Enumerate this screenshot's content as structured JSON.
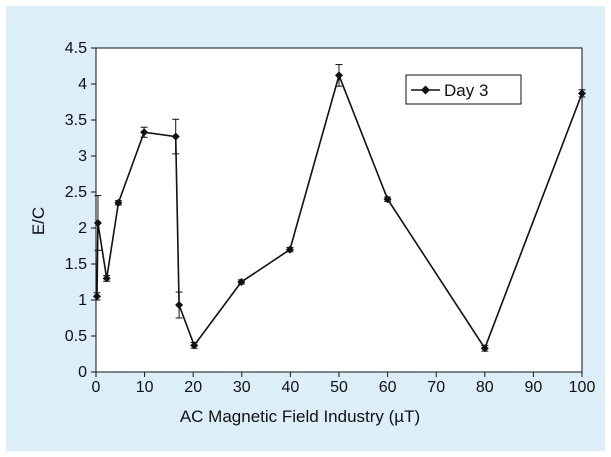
{
  "chart_data": {
    "type": "line",
    "xlabel": "AC Magnetic Field Industry (µT)",
    "ylabel": "E/C",
    "xlim": [
      0,
      100
    ],
    "ylim": [
      0,
      4.5
    ],
    "x_ticks": [
      "0",
      "10",
      "20",
      "30",
      "40",
      "50",
      "60",
      "70",
      "80",
      "90",
      "100"
    ],
    "y_ticks": [
      "0",
      "0.5",
      "1",
      "1.5",
      "2",
      "2.5",
      "3",
      "3.5",
      "4",
      "4.5"
    ],
    "legend_position": "top-right",
    "series": [
      {
        "name": "Day 3",
        "color": "#111111",
        "marker": "diamond",
        "points": [
          {
            "x": 0.2,
            "y": 1.05,
            "err": 0.05
          },
          {
            "x": 0.4,
            "y": 2.07,
            "err": 0.38
          },
          {
            "x": 2.2,
            "y": 1.3,
            "err": 0.04
          },
          {
            "x": 4.6,
            "y": 2.35,
            "err": 0.03
          },
          {
            "x": 9.9,
            "y": 3.33,
            "err": 0.07
          },
          {
            "x": 16.4,
            "y": 3.27,
            "err": 0.24
          },
          {
            "x": 17.1,
            "y": 0.93,
            "err": 0.18
          },
          {
            "x": 20.2,
            "y": 0.37,
            "err": 0.04
          },
          {
            "x": 29.9,
            "y": 1.25,
            "err": 0.03
          },
          {
            "x": 39.9,
            "y": 1.7,
            "err": 0.03
          },
          {
            "x": 50.0,
            "y": 4.12,
            "err": 0.15
          },
          {
            "x": 60.0,
            "y": 2.4,
            "err": 0.03
          },
          {
            "x": 80.0,
            "y": 0.33,
            "err": 0.04
          },
          {
            "x": 100.0,
            "y": 3.87,
            "err": 0.05
          }
        ]
      }
    ]
  }
}
